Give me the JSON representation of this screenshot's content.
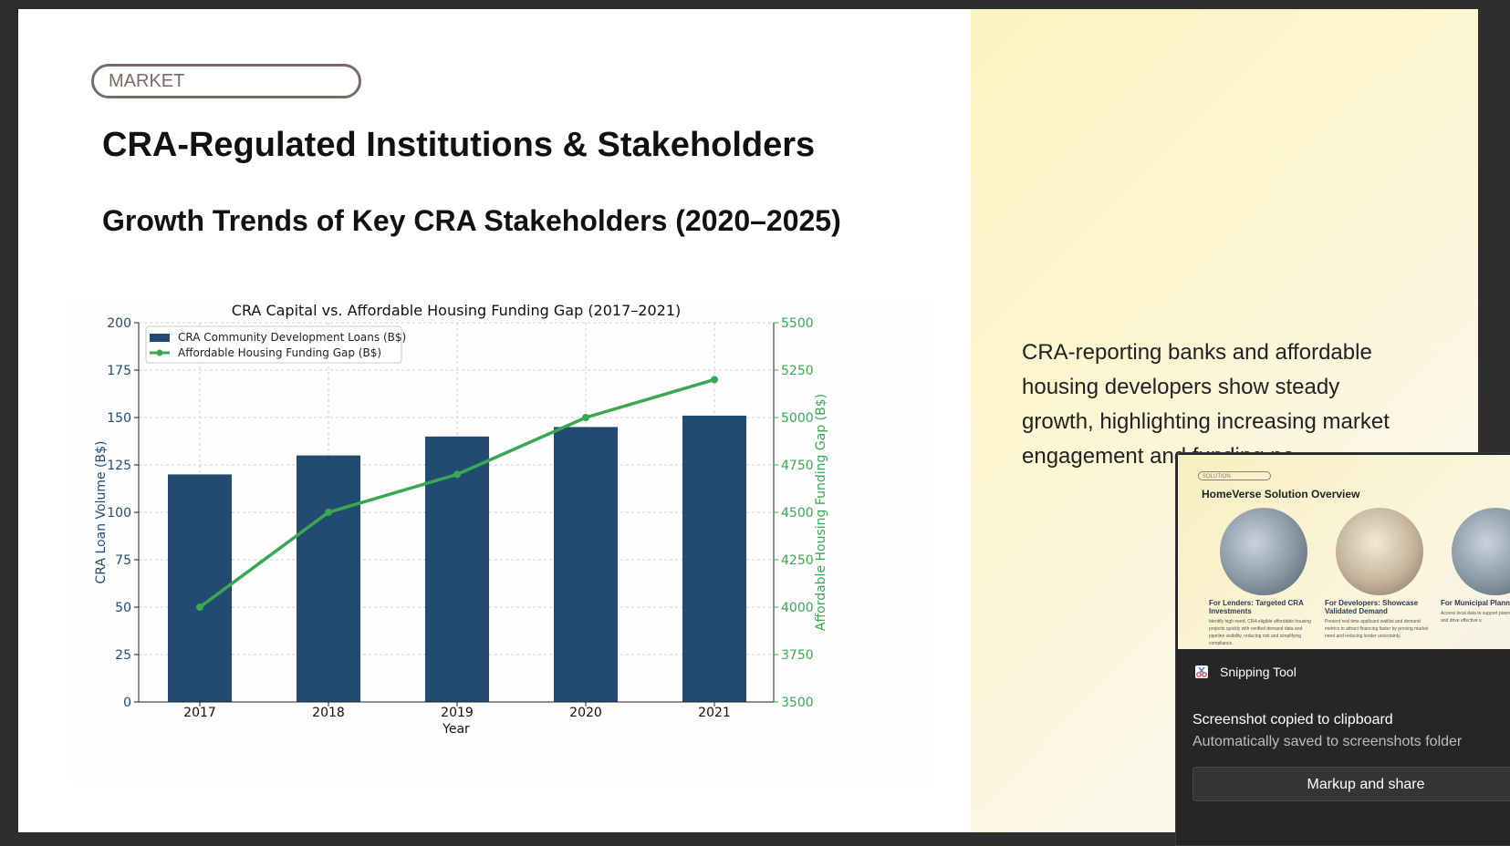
{
  "slide": {
    "tag": "MARKET",
    "title": "CRA-Regulated Institutions & Stakeholders",
    "subtitle": "Growth Trends of Key CRA Stakeholders (2020–2025)",
    "body_text": "CRA-reporting banks and affordable housing developers show steady growth, highlighting increasing market engagement and funding ne"
  },
  "chart_data": {
    "type": "bar",
    "title": "CRA Capital vs. Affordable Housing Funding Gap (2017–2021)",
    "categories": [
      "2017",
      "2018",
      "2019",
      "2020",
      "2021"
    ],
    "xlabel": "Year",
    "ylabel": "CRA Loan Volume (B$)",
    "y2label": "Affordable Housing Funding Gap (B$)",
    "ylim": [
      0,
      200
    ],
    "y2lim": [
      3500,
      5500
    ],
    "yticks": [
      "0",
      "25",
      "50",
      "75",
      "100",
      "125",
      "150",
      "175",
      "200"
    ],
    "y2ticks": [
      "3500",
      "3750",
      "4000",
      "4250",
      "4500",
      "4750",
      "5000",
      "5250",
      "5500"
    ],
    "grid": true,
    "legend_position": "top-left",
    "series": [
      {
        "name": "CRA Community Development Loans (B$)",
        "type": "bar",
        "axis": "left",
        "color": "#234b72",
        "values": [
          120,
          130,
          140,
          145,
          151
        ]
      },
      {
        "name": "Affordable Housing Funding Gap (B$)",
        "type": "line",
        "axis": "right",
        "color": "#38a852",
        "values": [
          4000,
          4500,
          4700,
          5000,
          5200
        ]
      }
    ]
  },
  "toast": {
    "app_name": "Snipping Tool",
    "message": "Screenshot copied to clipboard",
    "sub_message": "Automatically saved to screenshots folder",
    "button_label": "Markup and share",
    "thumbnail": {
      "tag": "SOLUTION",
      "title": "HomeVerse Solution Overview",
      "cards": [
        {
          "title": "For Lenders: Targeted CRA Investments",
          "body": "Identify high need, CRA eligible affordable housing projects quickly with verified demand data and pipeline visibility, reducing risk and simplifying compliance."
        },
        {
          "title": "For Developers: Showcase Validated Demand",
          "body": "Present real time applicant waitlist and demand metrics to attract financing faster by proving market need and reducing lender uncertainty."
        },
        {
          "title": "For Municipal Planning",
          "body": "Access local data to support planning, inform policy, and drive effective u"
        }
      ]
    }
  }
}
